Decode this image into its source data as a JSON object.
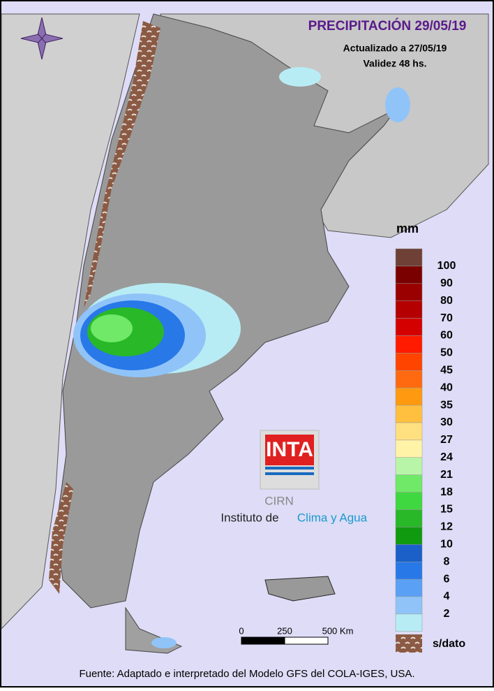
{
  "header": {
    "title": "PRECIPITACIÓN 29/05/19",
    "updated": "Actualizado a 27/05/19",
    "validity": "Validez 48 hs."
  },
  "legend": {
    "unit": "mm",
    "labels": [
      100,
      90,
      80,
      70,
      60,
      50,
      45,
      40,
      35,
      30,
      27,
      24,
      21,
      18,
      15,
      12,
      10,
      8,
      6,
      4,
      2
    ],
    "colors": [
      "#6e4036",
      "#7a0000",
      "#9a0000",
      "#b50000",
      "#d40000",
      "#ff1a00",
      "#ff4400",
      "#ff6a10",
      "#ff9a10",
      "#ffc040",
      "#ffe080",
      "#fff3a8",
      "#b8f5a8",
      "#70e868",
      "#40d840",
      "#28b828",
      "#109a10",
      "#1a60c8",
      "#2878e8",
      "#5aa0f5",
      "#90c4f8",
      "#b8ecf5"
    ],
    "no_data": "s/dato"
  },
  "scale": {
    "labels": [
      "0",
      "250",
      "500 Km"
    ]
  },
  "logo": {
    "name": "INTA",
    "center": "CIRN",
    "institute": "Instituto de",
    "institute_accent": "Clima y Agua"
  },
  "footer": {
    "source": "Fuente: Adaptado e interpretado del Modelo GFS del COLA-IGES, USA."
  }
}
